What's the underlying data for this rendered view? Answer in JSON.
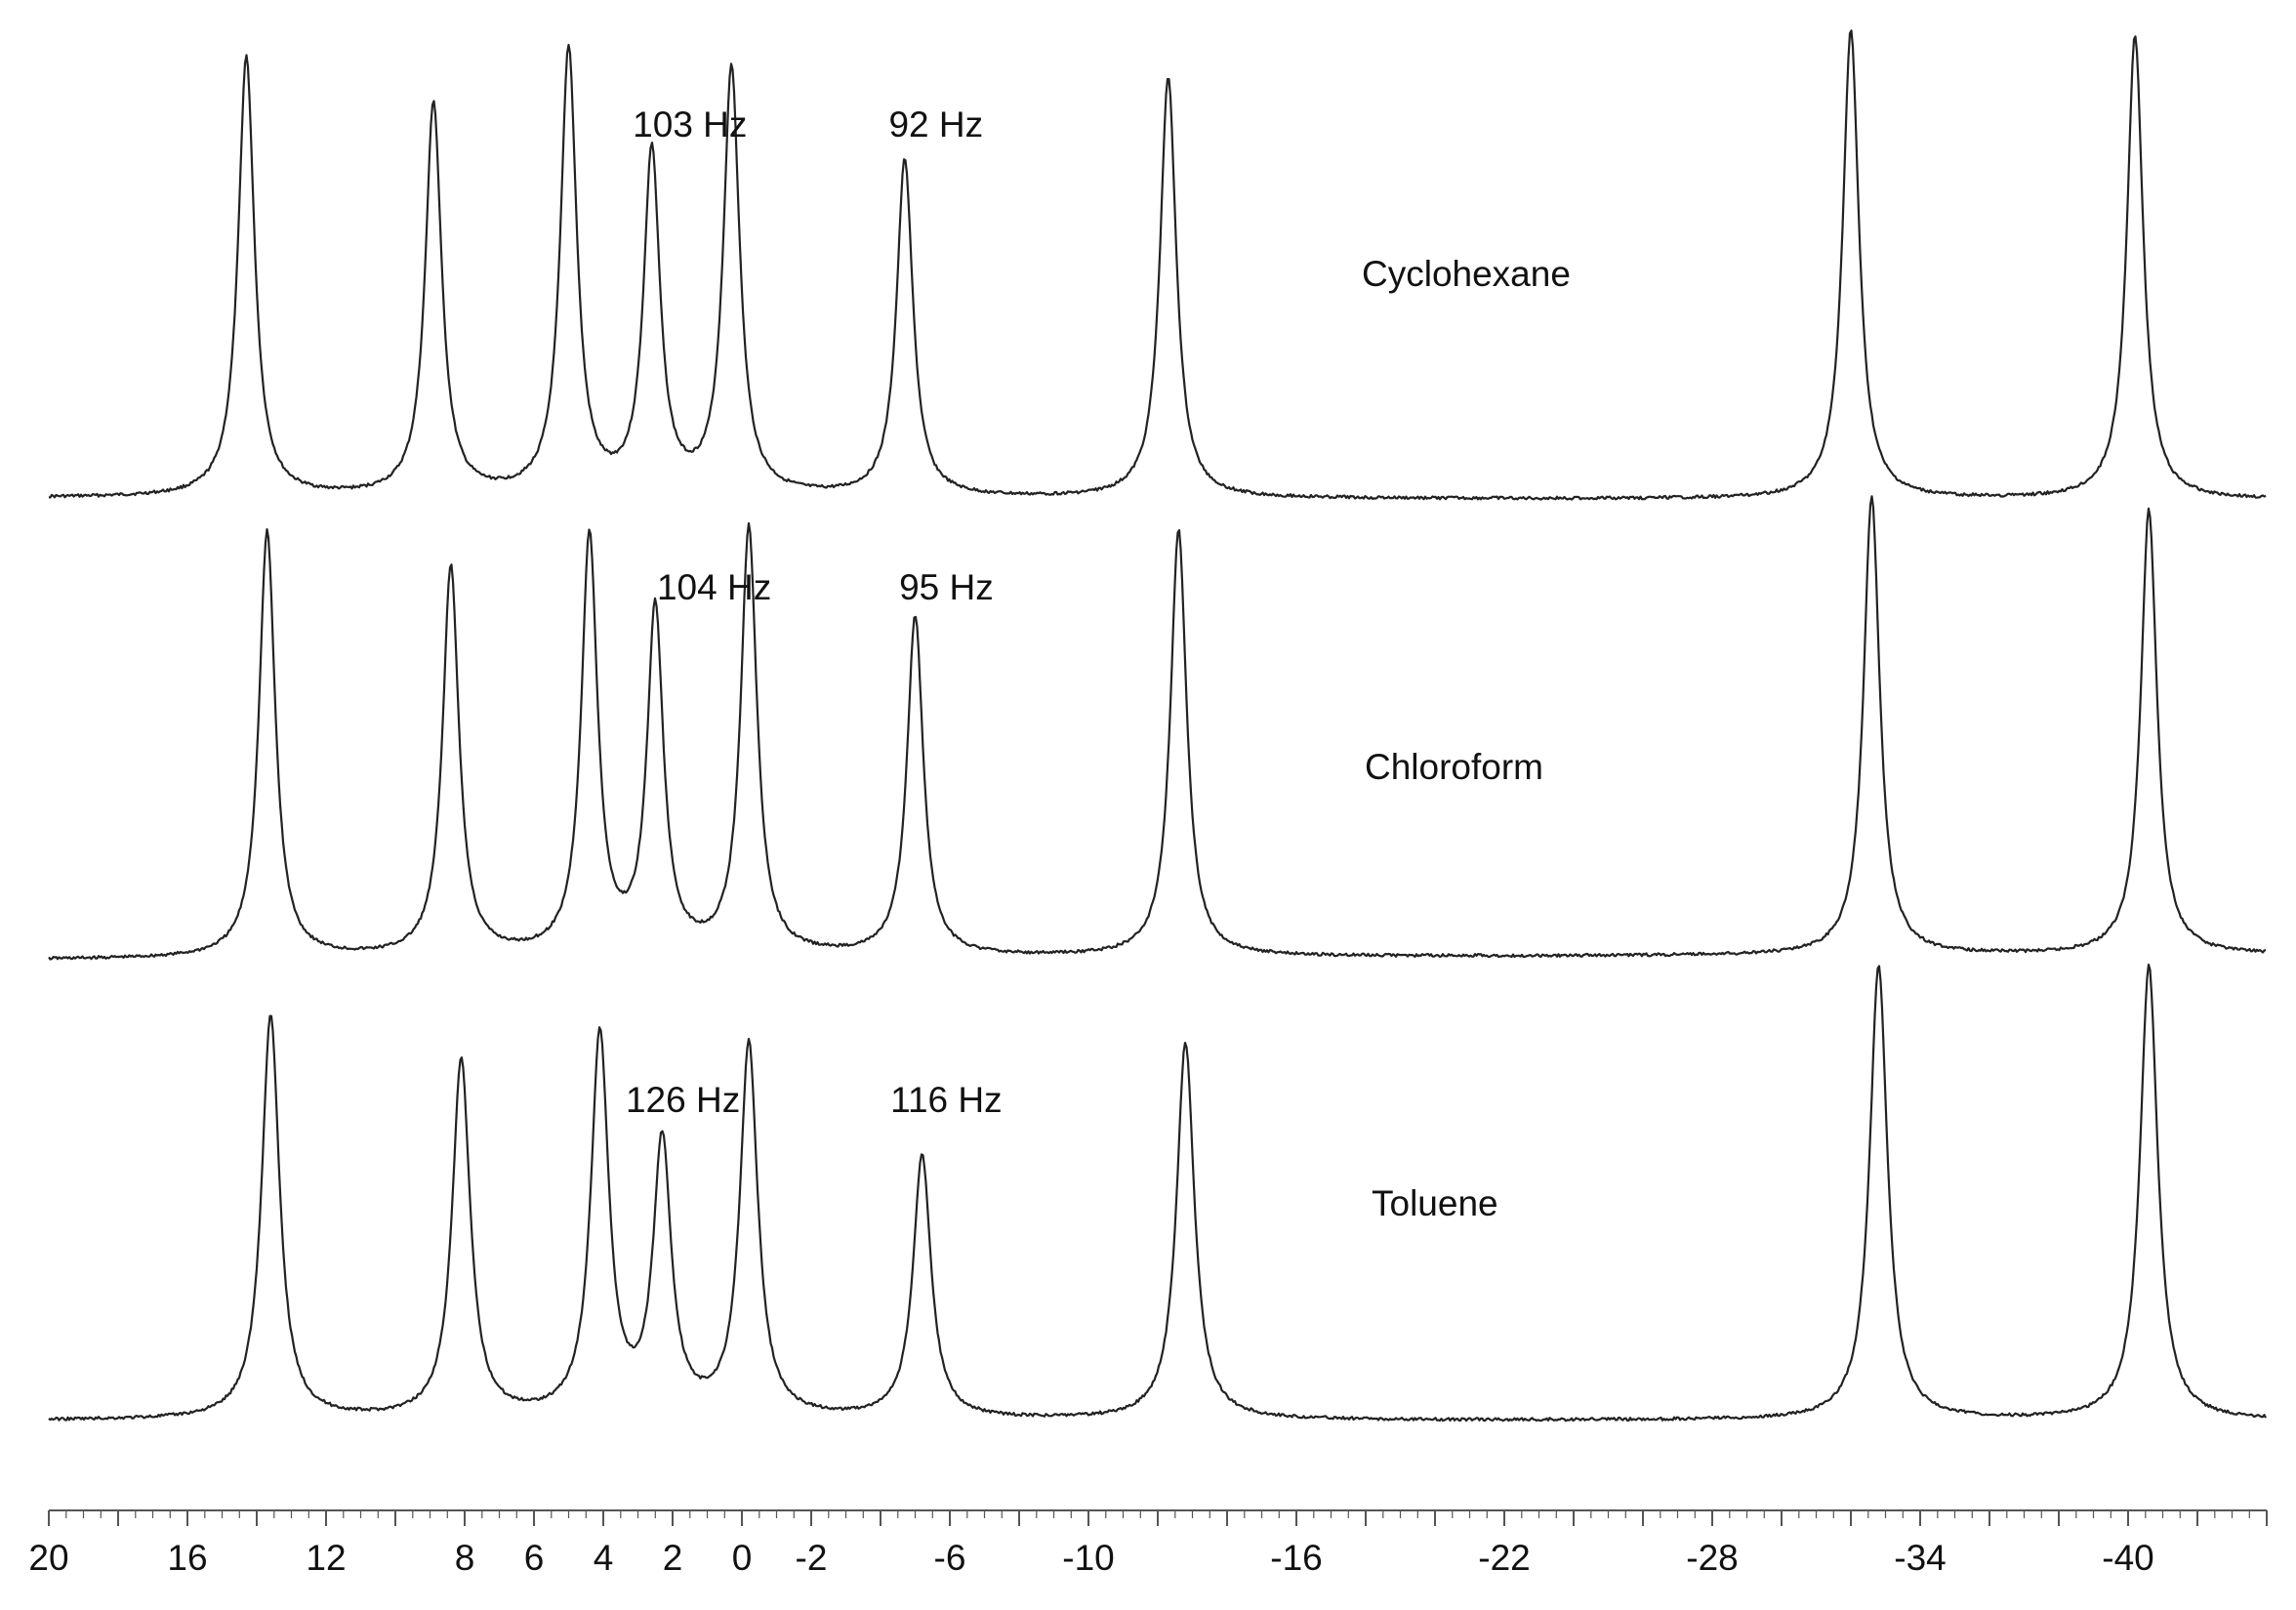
{
  "chart_data": {
    "type": "line",
    "title": "",
    "xlabel": "",
    "ylabel": "",
    "xlim": [
      20,
      -44
    ],
    "x_ticks": [
      20,
      16,
      12,
      8,
      6,
      4,
      2,
      0,
      -2,
      -6,
      -10,
      -16,
      -22,
      -28,
      -34,
      -40
    ],
    "grid": false,
    "line_color": "#222222",
    "series": [
      {
        "name": "Cyclohexane",
        "peaks": [
          {
            "x": 14.3,
            "height": 0.94
          },
          {
            "x": 8.9,
            "height": 0.84
          },
          {
            "x": 5.0,
            "height": 0.95
          },
          {
            "x": 2.6,
            "height": 0.73
          },
          {
            "x": 0.3,
            "height": 0.91
          },
          {
            "x": -4.7,
            "height": 0.72
          },
          {
            "x": -12.3,
            "height": 0.9
          },
          {
            "x": -32.0,
            "height": 1.0
          },
          {
            "x": -40.2,
            "height": 0.99
          }
        ],
        "annotations": [
          {
            "text": "103 Hz",
            "x": 1.5
          },
          {
            "text": "92 Hz",
            "x": -5.6
          }
        ]
      },
      {
        "name": "Chloroform",
        "peaks": [
          {
            "x": 13.7,
            "height": 0.93
          },
          {
            "x": 8.4,
            "height": 0.85
          },
          {
            "x": 4.4,
            "height": 0.91
          },
          {
            "x": 2.5,
            "height": 0.75
          },
          {
            "x": -0.2,
            "height": 0.93
          },
          {
            "x": -5.0,
            "height": 0.74
          },
          {
            "x": -12.6,
            "height": 0.93
          },
          {
            "x": -32.6,
            "height": 1.0
          },
          {
            "x": -40.6,
            "height": 0.97
          }
        ],
        "annotations": [
          {
            "text": "104 Hz",
            "x": 0.8
          },
          {
            "text": "95 Hz",
            "x": -5.9
          }
        ]
      },
      {
        "name": "Toluene",
        "peaks": [
          {
            "x": 13.6,
            "height": 0.89
          },
          {
            "x": 8.1,
            "height": 0.79
          },
          {
            "x": 4.1,
            "height": 0.84
          },
          {
            "x": 2.3,
            "height": 0.6
          },
          {
            "x": -0.2,
            "height": 0.82
          },
          {
            "x": -5.2,
            "height": 0.58
          },
          {
            "x": -12.8,
            "height": 0.83
          },
          {
            "x": -32.8,
            "height": 1.0
          },
          {
            "x": -40.6,
            "height": 1.0
          }
        ],
        "annotations": [
          {
            "text": "126 Hz",
            "x": 1.7
          },
          {
            "text": "116 Hz",
            "x": -5.9
          }
        ]
      }
    ]
  }
}
